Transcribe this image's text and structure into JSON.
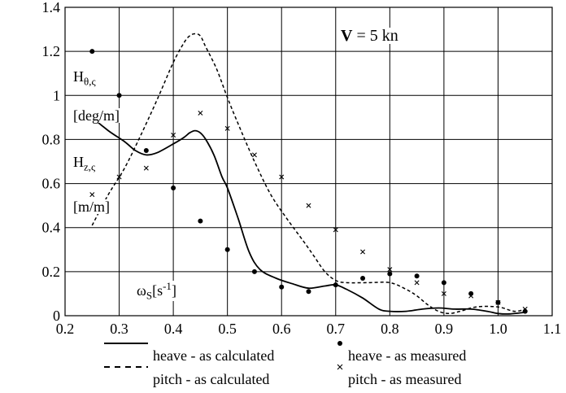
{
  "chart_data": {
    "type": "line",
    "xlim": [
      0.2,
      1.1
    ],
    "ylim": [
      0,
      1.4
    ],
    "x_ticks": [
      "0.2",
      "0.3",
      "0.4",
      "0.5",
      "0.6",
      "0.7",
      "0.8",
      "0.9",
      "1.0",
      "1.1"
    ],
    "y_ticks": [
      "0",
      "0.2",
      "0.4",
      "0.6",
      "0.8",
      "1",
      "1.2",
      "1.4"
    ],
    "grid": true,
    "annotation": {
      "bold": "V",
      "rest": " = 5 kn"
    },
    "ylabel_theta": {
      "main": "H",
      "sub": "θ,ς"
    },
    "ylabel_theta_unit": "[deg/m]",
    "ylabel_z": {
      "main": "H",
      "sub": "z,ς"
    },
    "ylabel_z_unit": "[m/m]",
    "xlabel": {
      "main": "ω",
      "sub": "S",
      "unit": "[s",
      "exp": "-1",
      "close": "]"
    },
    "series": [
      {
        "name": "heave - as calculated",
        "style": "solid",
        "x": [
          0.25,
          0.28,
          0.31,
          0.33,
          0.35,
          0.37,
          0.4,
          0.42,
          0.43,
          0.44,
          0.45,
          0.46,
          0.475,
          0.49,
          0.5,
          0.52,
          0.54,
          0.56,
          0.59,
          0.62,
          0.65,
          0.68,
          0.7,
          0.72,
          0.75,
          0.78,
          0.8,
          0.83,
          0.86,
          0.89,
          0.92,
          0.95,
          0.98,
          1.0,
          1.02,
          1.05
        ],
        "y": [
          0.9,
          0.84,
          0.79,
          0.75,
          0.73,
          0.74,
          0.78,
          0.81,
          0.83,
          0.84,
          0.83,
          0.8,
          0.73,
          0.63,
          0.58,
          0.44,
          0.29,
          0.21,
          0.17,
          0.145,
          0.125,
          0.135,
          0.14,
          0.12,
          0.08,
          0.03,
          0.02,
          0.02,
          0.03,
          0.035,
          0.03,
          0.03,
          0.02,
          0.01,
          0.008,
          0.015
        ]
      },
      {
        "name": "pitch - as calculated",
        "style": "dashed",
        "x": [
          0.25,
          0.28,
          0.31,
          0.34,
          0.37,
          0.4,
          0.42,
          0.43,
          0.44,
          0.45,
          0.46,
          0.48,
          0.5,
          0.52,
          0.55,
          0.58,
          0.61,
          0.64,
          0.66,
          0.68,
          0.7,
          0.72,
          0.76,
          0.8,
          0.83,
          0.85,
          0.87,
          0.89,
          0.91,
          0.93,
          0.96,
          1.0,
          1.03,
          1.05
        ],
        "y": [
          0.41,
          0.55,
          0.67,
          0.82,
          0.98,
          1.15,
          1.24,
          1.27,
          1.28,
          1.27,
          1.22,
          1.12,
          0.99,
          0.87,
          0.7,
          0.55,
          0.44,
          0.34,
          0.27,
          0.2,
          0.16,
          0.15,
          0.15,
          0.15,
          0.12,
          0.09,
          0.05,
          0.02,
          0.01,
          0.02,
          0.04,
          0.04,
          0.02,
          0.03
        ]
      },
      {
        "name": "heave - as measured",
        "style": "dot",
        "x": [
          0.25,
          0.3,
          0.35,
          0.4,
          0.45,
          0.5,
          0.55,
          0.6,
          0.65,
          0.7,
          0.75,
          0.8,
          0.85,
          0.9,
          0.95,
          1.0,
          1.05
        ],
        "y": [
          1.2,
          1.0,
          0.75,
          0.58,
          0.43,
          0.3,
          0.2,
          0.13,
          0.11,
          0.14,
          0.17,
          0.19,
          0.18,
          0.15,
          0.1,
          0.06,
          0.02
        ]
      },
      {
        "name": "pitch - as measured",
        "style": "cross",
        "x": [
          0.25,
          0.3,
          0.35,
          0.4,
          0.45,
          0.5,
          0.55,
          0.6,
          0.65,
          0.7,
          0.75,
          0.8,
          0.85,
          0.9,
          0.95,
          1.0,
          1.05
        ],
        "y": [
          0.55,
          0.63,
          0.67,
          0.82,
          0.92,
          0.85,
          0.73,
          0.63,
          0.5,
          0.39,
          0.29,
          0.21,
          0.15,
          0.1,
          0.09,
          0.06,
          0.03
        ]
      }
    ],
    "legend": [
      {
        "label": "heave - as calculated",
        "style": "solid"
      },
      {
        "label": "heave - as measured",
        "style": "dot"
      },
      {
        "label": "pitch - as calculated",
        "style": "dashed"
      },
      {
        "label": "pitch - as measured",
        "style": "cross"
      }
    ]
  }
}
